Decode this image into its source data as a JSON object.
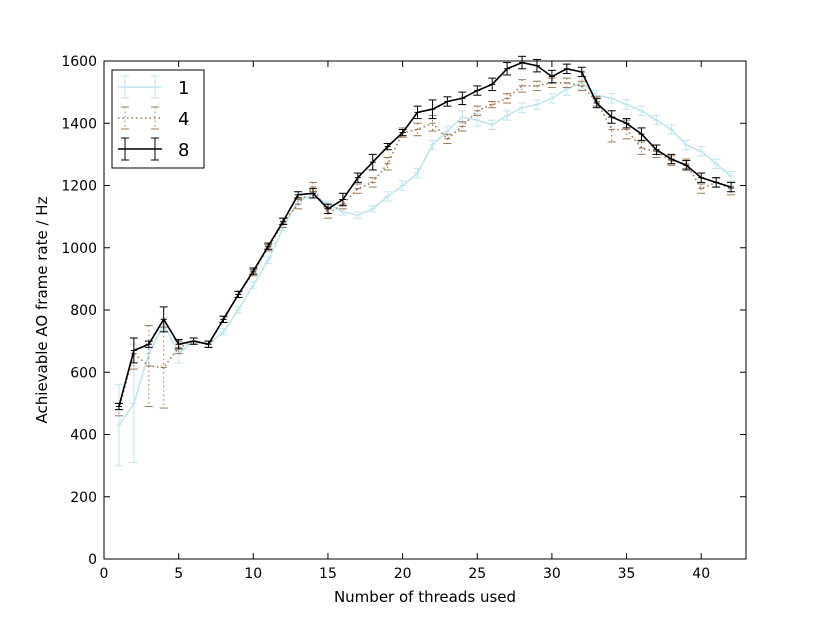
{
  "chart_data": {
    "type": "line",
    "title": "",
    "xlabel": "Number of threads used",
    "ylabel": "Achievable AO frame rate / Hz",
    "xlim": [
      0,
      43
    ],
    "ylim": [
      0,
      1600
    ],
    "xticks": [
      0,
      5,
      10,
      15,
      20,
      25,
      30,
      35,
      40
    ],
    "yticks": [
      0,
      200,
      400,
      600,
      800,
      1000,
      1200,
      1400,
      1600
    ],
    "grid": false,
    "legend_position": "top-left",
    "x": [
      1,
      2,
      3,
      4,
      5,
      6,
      7,
      8,
      9,
      10,
      11,
      12,
      13,
      14,
      15,
      16,
      17,
      18,
      19,
      20,
      21,
      22,
      23,
      24,
      25,
      26,
      27,
      28,
      29,
      30,
      31,
      32,
      33,
      34,
      35,
      36,
      37,
      38,
      39,
      40,
      41,
      42
    ],
    "series": [
      {
        "name": "1",
        "color": "#bfe6ef",
        "line_style": "solid",
        "values": [
          430,
          500,
          660,
          755,
          660,
          700,
          690,
          730,
          800,
          880,
          960,
          1065,
          1150,
          1170,
          1140,
          1115,
          1105,
          1125,
          1165,
          1200,
          1240,
          1330,
          1375,
          1420,
          1410,
          1395,
          1425,
          1450,
          1460,
          1480,
          1510,
          1530,
          1490,
          1480,
          1460,
          1440,
          1410,
          1380,
          1330,
          1310,
          1270,
          1230
        ],
        "errors": [
          130,
          190,
          40,
          20,
          30,
          10,
          10,
          10,
          10,
          10,
          10,
          10,
          10,
          10,
          10,
          10,
          10,
          10,
          15,
          15,
          15,
          15,
          15,
          20,
          20,
          15,
          15,
          15,
          15,
          15,
          20,
          20,
          15,
          15,
          15,
          15,
          15,
          15,
          15,
          15,
          15,
          15
        ]
      },
      {
        "name": "4",
        "color": "#a07850",
        "line_style": "dotted",
        "values": [
          480,
          660,
          620,
          615,
          680,
          700,
          690,
          770,
          850,
          920,
          1000,
          1080,
          1140,
          1195,
          1110,
          1140,
          1190,
          1210,
          1270,
          1370,
          1380,
          1400,
          1350,
          1390,
          1440,
          1460,
          1480,
          1520,
          1520,
          1530,
          1530,
          1520,
          1470,
          1380,
          1380,
          1320,
          1310,
          1280,
          1270,
          1190,
          1210,
          1190
        ],
        "errors": [
          20,
          50,
          130,
          130,
          20,
          10,
          10,
          10,
          10,
          10,
          10,
          15,
          15,
          15,
          15,
          15,
          15,
          15,
          20,
          15,
          20,
          25,
          15,
          15,
          15,
          10,
          15,
          20,
          15,
          15,
          15,
          15,
          15,
          40,
          30,
          20,
          20,
          15,
          15,
          15,
          15,
          20
        ]
      },
      {
        "name": "8",
        "color": "#000000",
        "line_style": "solid",
        "values": [
          490,
          670,
          690,
          770,
          690,
          700,
          690,
          770,
          850,
          925,
          1005,
          1085,
          1170,
          1175,
          1125,
          1155,
          1225,
          1275,
          1325,
          1370,
          1435,
          1445,
          1470,
          1480,
          1505,
          1525,
          1575,
          1595,
          1585,
          1550,
          1575,
          1565,
          1465,
          1420,
          1400,
          1365,
          1315,
          1285,
          1265,
          1225,
          1210,
          1195
        ],
        "errors": [
          10,
          40,
          10,
          40,
          15,
          10,
          10,
          10,
          10,
          10,
          10,
          10,
          10,
          15,
          15,
          20,
          15,
          25,
          10,
          10,
          20,
          30,
          15,
          20,
          15,
          20,
          20,
          20,
          20,
          20,
          15,
          15,
          15,
          20,
          15,
          20,
          15,
          15,
          15,
          15,
          15,
          15
        ]
      }
    ]
  }
}
